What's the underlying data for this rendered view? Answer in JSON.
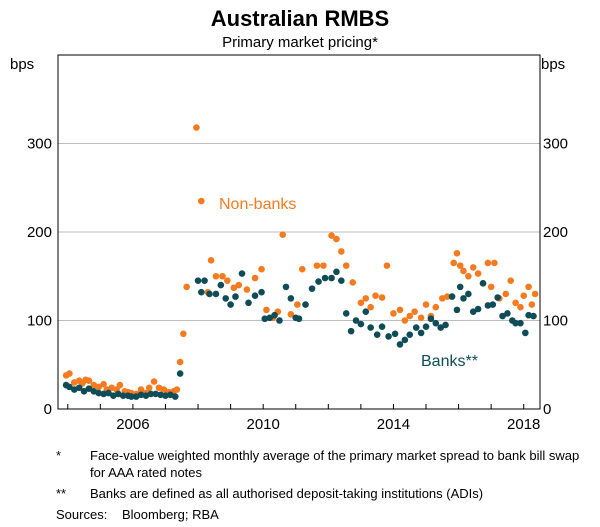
{
  "chart_data": {
    "type": "scatter",
    "title": "Australian RMBS",
    "subtitle": "Primary market pricing*",
    "ylabel_left": "bps",
    "ylabel_right": "bps",
    "ylim": [
      0,
      400
    ],
    "yticks": [
      0,
      100,
      200,
      300
    ],
    "xlim": [
      2003.7,
      2018.5
    ],
    "xticks": [
      2006,
      2010,
      2014,
      2018
    ],
    "colors": {
      "non_banks": "#f47b20",
      "banks": "#0f4c57"
    },
    "series": [
      {
        "name": "Non-banks",
        "key": "non_banks",
        "label_text": "Non-banks",
        "points": [
          [
            2003.95,
            38
          ],
          [
            2004.05,
            40
          ],
          [
            2004.2,
            30
          ],
          [
            2004.35,
            32
          ],
          [
            2004.45,
            29
          ],
          [
            2004.55,
            33
          ],
          [
            2004.65,
            32
          ],
          [
            2004.8,
            27
          ],
          [
            2004.95,
            25
          ],
          [
            2005.1,
            28
          ],
          [
            2005.2,
            22
          ],
          [
            2005.35,
            24
          ],
          [
            2005.5,
            22
          ],
          [
            2005.6,
            27
          ],
          [
            2005.75,
            20
          ],
          [
            2005.85,
            19
          ],
          [
            2005.95,
            18
          ],
          [
            2006.1,
            17
          ],
          [
            2006.25,
            22
          ],
          [
            2006.4,
            18
          ],
          [
            2006.5,
            24
          ],
          [
            2006.65,
            31
          ],
          [
            2006.8,
            24
          ],
          [
            2006.95,
            22
          ],
          [
            2007.1,
            19
          ],
          [
            2007.25,
            20
          ],
          [
            2007.35,
            22
          ],
          [
            2007.45,
            53
          ],
          [
            2007.55,
            85
          ],
          [
            2007.65,
            138
          ],
          [
            2007.95,
            318
          ],
          [
            2008.1,
            235
          ],
          [
            2008.3,
            132
          ],
          [
            2008.4,
            168
          ],
          [
            2008.55,
            150
          ],
          [
            2008.75,
            150
          ],
          [
            2008.9,
            145
          ],
          [
            2009.1,
            137
          ],
          [
            2009.25,
            140
          ],
          [
            2009.5,
            135
          ],
          [
            2009.75,
            148
          ],
          [
            2009.95,
            158
          ],
          [
            2010.1,
            112
          ],
          [
            2010.3,
            103
          ],
          [
            2010.45,
            110
          ],
          [
            2010.6,
            197
          ],
          [
            2010.85,
            107
          ],
          [
            2011.05,
            118
          ],
          [
            2011.2,
            158
          ],
          [
            2011.65,
            162
          ],
          [
            2011.85,
            162
          ],
          [
            2012.1,
            196
          ],
          [
            2012.25,
            192
          ],
          [
            2012.4,
            178
          ],
          [
            2012.55,
            162
          ],
          [
            2012.75,
            143
          ],
          [
            2013.0,
            120
          ],
          [
            2013.15,
            125
          ],
          [
            2013.3,
            115
          ],
          [
            2013.45,
            128
          ],
          [
            2013.65,
            126
          ],
          [
            2013.8,
            162
          ],
          [
            2014.0,
            108
          ],
          [
            2014.2,
            112
          ],
          [
            2014.35,
            100
          ],
          [
            2014.5,
            105
          ],
          [
            2014.65,
            110
          ],
          [
            2014.85,
            103
          ],
          [
            2015.0,
            118
          ],
          [
            2015.15,
            105
          ],
          [
            2015.3,
            115
          ],
          [
            2015.5,
            125
          ],
          [
            2015.65,
            127
          ],
          [
            2015.85,
            165
          ],
          [
            2015.95,
            176
          ],
          [
            2016.05,
            162
          ],
          [
            2016.15,
            156
          ],
          [
            2016.3,
            150
          ],
          [
            2016.45,
            160
          ],
          [
            2016.6,
            153
          ],
          [
            2016.75,
            142
          ],
          [
            2016.9,
            165
          ],
          [
            2017.0,
            138
          ],
          [
            2017.1,
            165
          ],
          [
            2017.25,
            125
          ],
          [
            2017.45,
            130
          ],
          [
            2017.6,
            145
          ],
          [
            2017.75,
            120
          ],
          [
            2017.9,
            115
          ],
          [
            2018.0,
            128
          ],
          [
            2018.15,
            138
          ],
          [
            2018.25,
            118
          ],
          [
            2018.35,
            130
          ]
        ]
      },
      {
        "name": "Banks**",
        "key": "banks",
        "label_text": "Banks**",
        "points": [
          [
            2003.95,
            27
          ],
          [
            2004.05,
            25
          ],
          [
            2004.2,
            22
          ],
          [
            2004.35,
            24
          ],
          [
            2004.5,
            20
          ],
          [
            2004.65,
            23
          ],
          [
            2004.8,
            20
          ],
          [
            2004.95,
            18
          ],
          [
            2005.1,
            17
          ],
          [
            2005.25,
            18
          ],
          [
            2005.4,
            15
          ],
          [
            2005.55,
            17
          ],
          [
            2005.7,
            15
          ],
          [
            2005.85,
            15
          ],
          [
            2005.95,
            14
          ],
          [
            2006.1,
            14
          ],
          [
            2006.25,
            16
          ],
          [
            2006.4,
            15
          ],
          [
            2006.55,
            17
          ],
          [
            2006.7,
            17
          ],
          [
            2006.85,
            16
          ],
          [
            2007.0,
            15
          ],
          [
            2007.15,
            16
          ],
          [
            2007.3,
            14
          ],
          [
            2007.45,
            40
          ],
          [
            2008.0,
            145
          ],
          [
            2008.1,
            132
          ],
          [
            2008.2,
            145
          ],
          [
            2008.35,
            130
          ],
          [
            2008.55,
            130
          ],
          [
            2008.7,
            140
          ],
          [
            2008.85,
            125
          ],
          [
            2009.0,
            118
          ],
          [
            2009.15,
            127
          ],
          [
            2009.35,
            153
          ],
          [
            2009.55,
            120
          ],
          [
            2009.75,
            128
          ],
          [
            2009.95,
            132
          ],
          [
            2010.05,
            102
          ],
          [
            2010.2,
            103
          ],
          [
            2010.35,
            106
          ],
          [
            2010.5,
            100
          ],
          [
            2010.7,
            138
          ],
          [
            2010.85,
            125
          ],
          [
            2011.0,
            103
          ],
          [
            2011.1,
            102
          ],
          [
            2011.3,
            118
          ],
          [
            2011.5,
            136
          ],
          [
            2011.7,
            144
          ],
          [
            2011.9,
            148
          ],
          [
            2012.1,
            148
          ],
          [
            2012.25,
            155
          ],
          [
            2012.4,
            145
          ],
          [
            2012.55,
            108
          ],
          [
            2012.7,
            88
          ],
          [
            2012.85,
            100
          ],
          [
            2013.0,
            96
          ],
          [
            2013.15,
            110
          ],
          [
            2013.3,
            92
          ],
          [
            2013.5,
            84
          ],
          [
            2013.65,
            93
          ],
          [
            2013.85,
            82
          ],
          [
            2014.05,
            85
          ],
          [
            2014.2,
            73
          ],
          [
            2014.35,
            78
          ],
          [
            2014.5,
            84
          ],
          [
            2014.7,
            92
          ],
          [
            2014.85,
            86
          ],
          [
            2015.0,
            93
          ],
          [
            2015.15,
            102
          ],
          [
            2015.3,
            97
          ],
          [
            2015.45,
            92
          ],
          [
            2015.6,
            95
          ],
          [
            2015.8,
            127
          ],
          [
            2015.95,
            112
          ],
          [
            2016.05,
            138
          ],
          [
            2016.15,
            125
          ],
          [
            2016.3,
            130
          ],
          [
            2016.45,
            110
          ],
          [
            2016.6,
            113
          ],
          [
            2016.75,
            142
          ],
          [
            2016.9,
            117
          ],
          [
            2017.05,
            118
          ],
          [
            2017.2,
            126
          ],
          [
            2017.35,
            105
          ],
          [
            2017.5,
            108
          ],
          [
            2017.65,
            100
          ],
          [
            2017.75,
            97
          ],
          [
            2017.9,
            97
          ],
          [
            2018.05,
            86
          ],
          [
            2018.15,
            106
          ],
          [
            2018.3,
            105
          ]
        ]
      }
    ]
  },
  "footnotes": [
    {
      "mark": "*",
      "text": "Face-value weighted monthly average of the primary market spread to bank bill swap for AAA rated notes"
    },
    {
      "mark": "**",
      "text": "Banks are defined as all authorised deposit-taking institutions (ADIs)"
    }
  ],
  "sources": {
    "label": "Sources:",
    "text": "Bloomberg; RBA"
  }
}
